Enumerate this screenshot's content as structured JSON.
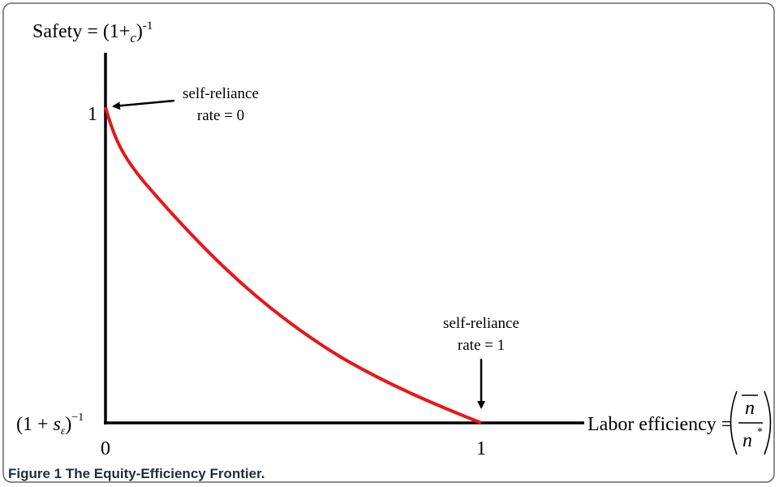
{
  "figure": {
    "y_axis_label": {
      "text": "Safety = (1+",
      "sub": "c",
      "close": ")",
      "sup": "-1"
    },
    "y_ticks": {
      "top": "1",
      "bottom": {
        "text": "(1 + ",
        "sym": "s",
        "sub": "ε",
        "close": ")",
        "sup": "−1"
      }
    },
    "x_ticks": {
      "left": "0",
      "right": "1"
    },
    "x_axis_label": {
      "text": "Labor efficiency =",
      "numerator": "n",
      "denominator": "n",
      "denominator_sup": "*"
    },
    "annotations": [
      {
        "line1": "self-reliance",
        "line2": "rate = 0"
      },
      {
        "line1": "self-reliance",
        "line2": "rate = 1"
      }
    ],
    "caption": {
      "label": "Figure 1",
      "text": "The Equity-Efficiency Frontier."
    }
  }
}
